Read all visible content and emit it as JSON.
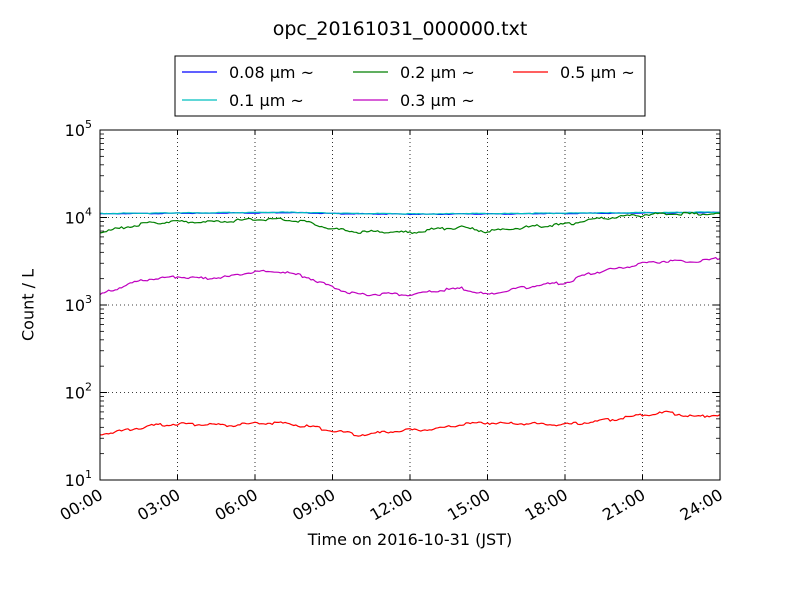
{
  "chart_data": {
    "type": "line",
    "title": "opc_20161031_000000.txt",
    "xlabel": "Time on 2016-10-31 (JST)",
    "ylabel": "Count / L",
    "xlim": [
      "00:00",
      "24:00"
    ],
    "ylim": [
      10,
      100000
    ],
    "yscale": "log",
    "grid": true,
    "legend_position": "top-center",
    "x_tick_labels": [
      "00:00",
      "03:00",
      "06:00",
      "09:00",
      "12:00",
      "15:00",
      "18:00",
      "21:00",
      "24:00"
    ],
    "y_tick_labels": [
      {
        "base": "10",
        "exp": "1"
      },
      {
        "base": "10",
        "exp": "2"
      },
      {
        "base": "10",
        "exp": "3"
      },
      {
        "base": "10",
        "exp": "4"
      },
      {
        "base": "10",
        "exp": "5"
      }
    ],
    "x": [
      "00:00",
      "01:00",
      "02:00",
      "03:00",
      "04:00",
      "05:00",
      "06:00",
      "07:00",
      "08:00",
      "09:00",
      "10:00",
      "11:00",
      "12:00",
      "13:00",
      "14:00",
      "15:00",
      "16:00",
      "17:00",
      "18:00",
      "19:00",
      "20:00",
      "21:00",
      "22:00",
      "23:00",
      "24:00"
    ],
    "series": [
      {
        "name": "0.08 μm ~",
        "color": "#0000ff",
        "values": [
          11000,
          11100,
          11100,
          11200,
          11200,
          11300,
          11300,
          11400,
          11300,
          11100,
          11000,
          11000,
          10900,
          10900,
          11000,
          11000,
          11000,
          11100,
          11100,
          11200,
          11200,
          11300,
          11300,
          11400,
          11400
        ]
      },
      {
        "name": "0.1 μm ~",
        "color": "#00bfbf",
        "values": [
          11100,
          11200,
          11200,
          11300,
          11300,
          11400,
          11400,
          11500,
          11400,
          11200,
          11100,
          11100,
          11000,
          11000,
          11100,
          11100,
          11100,
          11200,
          11200,
          11300,
          11300,
          11400,
          11400,
          11500,
          11500
        ]
      },
      {
        "name": "0.2 μm ~",
        "color": "#007f00",
        "values": [
          6700,
          7800,
          8700,
          9000,
          8800,
          9100,
          9500,
          9600,
          8900,
          7400,
          6800,
          6900,
          6700,
          7400,
          7700,
          6900,
          7500,
          8000,
          8300,
          9400,
          10100,
          10700,
          11100,
          11000,
          11100
        ]
      },
      {
        "name": "0.3 μm ~",
        "color": "#bf00bf",
        "values": [
          1300,
          1700,
          2000,
          2100,
          2000,
          2100,
          2400,
          2400,
          2100,
          1600,
          1300,
          1350,
          1300,
          1450,
          1550,
          1300,
          1500,
          1700,
          1800,
          2300,
          2600,
          3000,
          3200,
          3100,
          3400
        ]
      },
      {
        "name": "0.5 μm ~",
        "color": "#ff0000",
        "values": [
          33,
          37,
          42,
          44,
          43,
          42,
          44,
          45,
          41,
          37,
          33,
          35,
          37,
          38,
          43,
          45,
          44,
          44,
          43,
          46,
          50,
          55,
          59,
          53,
          56
        ]
      }
    ]
  }
}
